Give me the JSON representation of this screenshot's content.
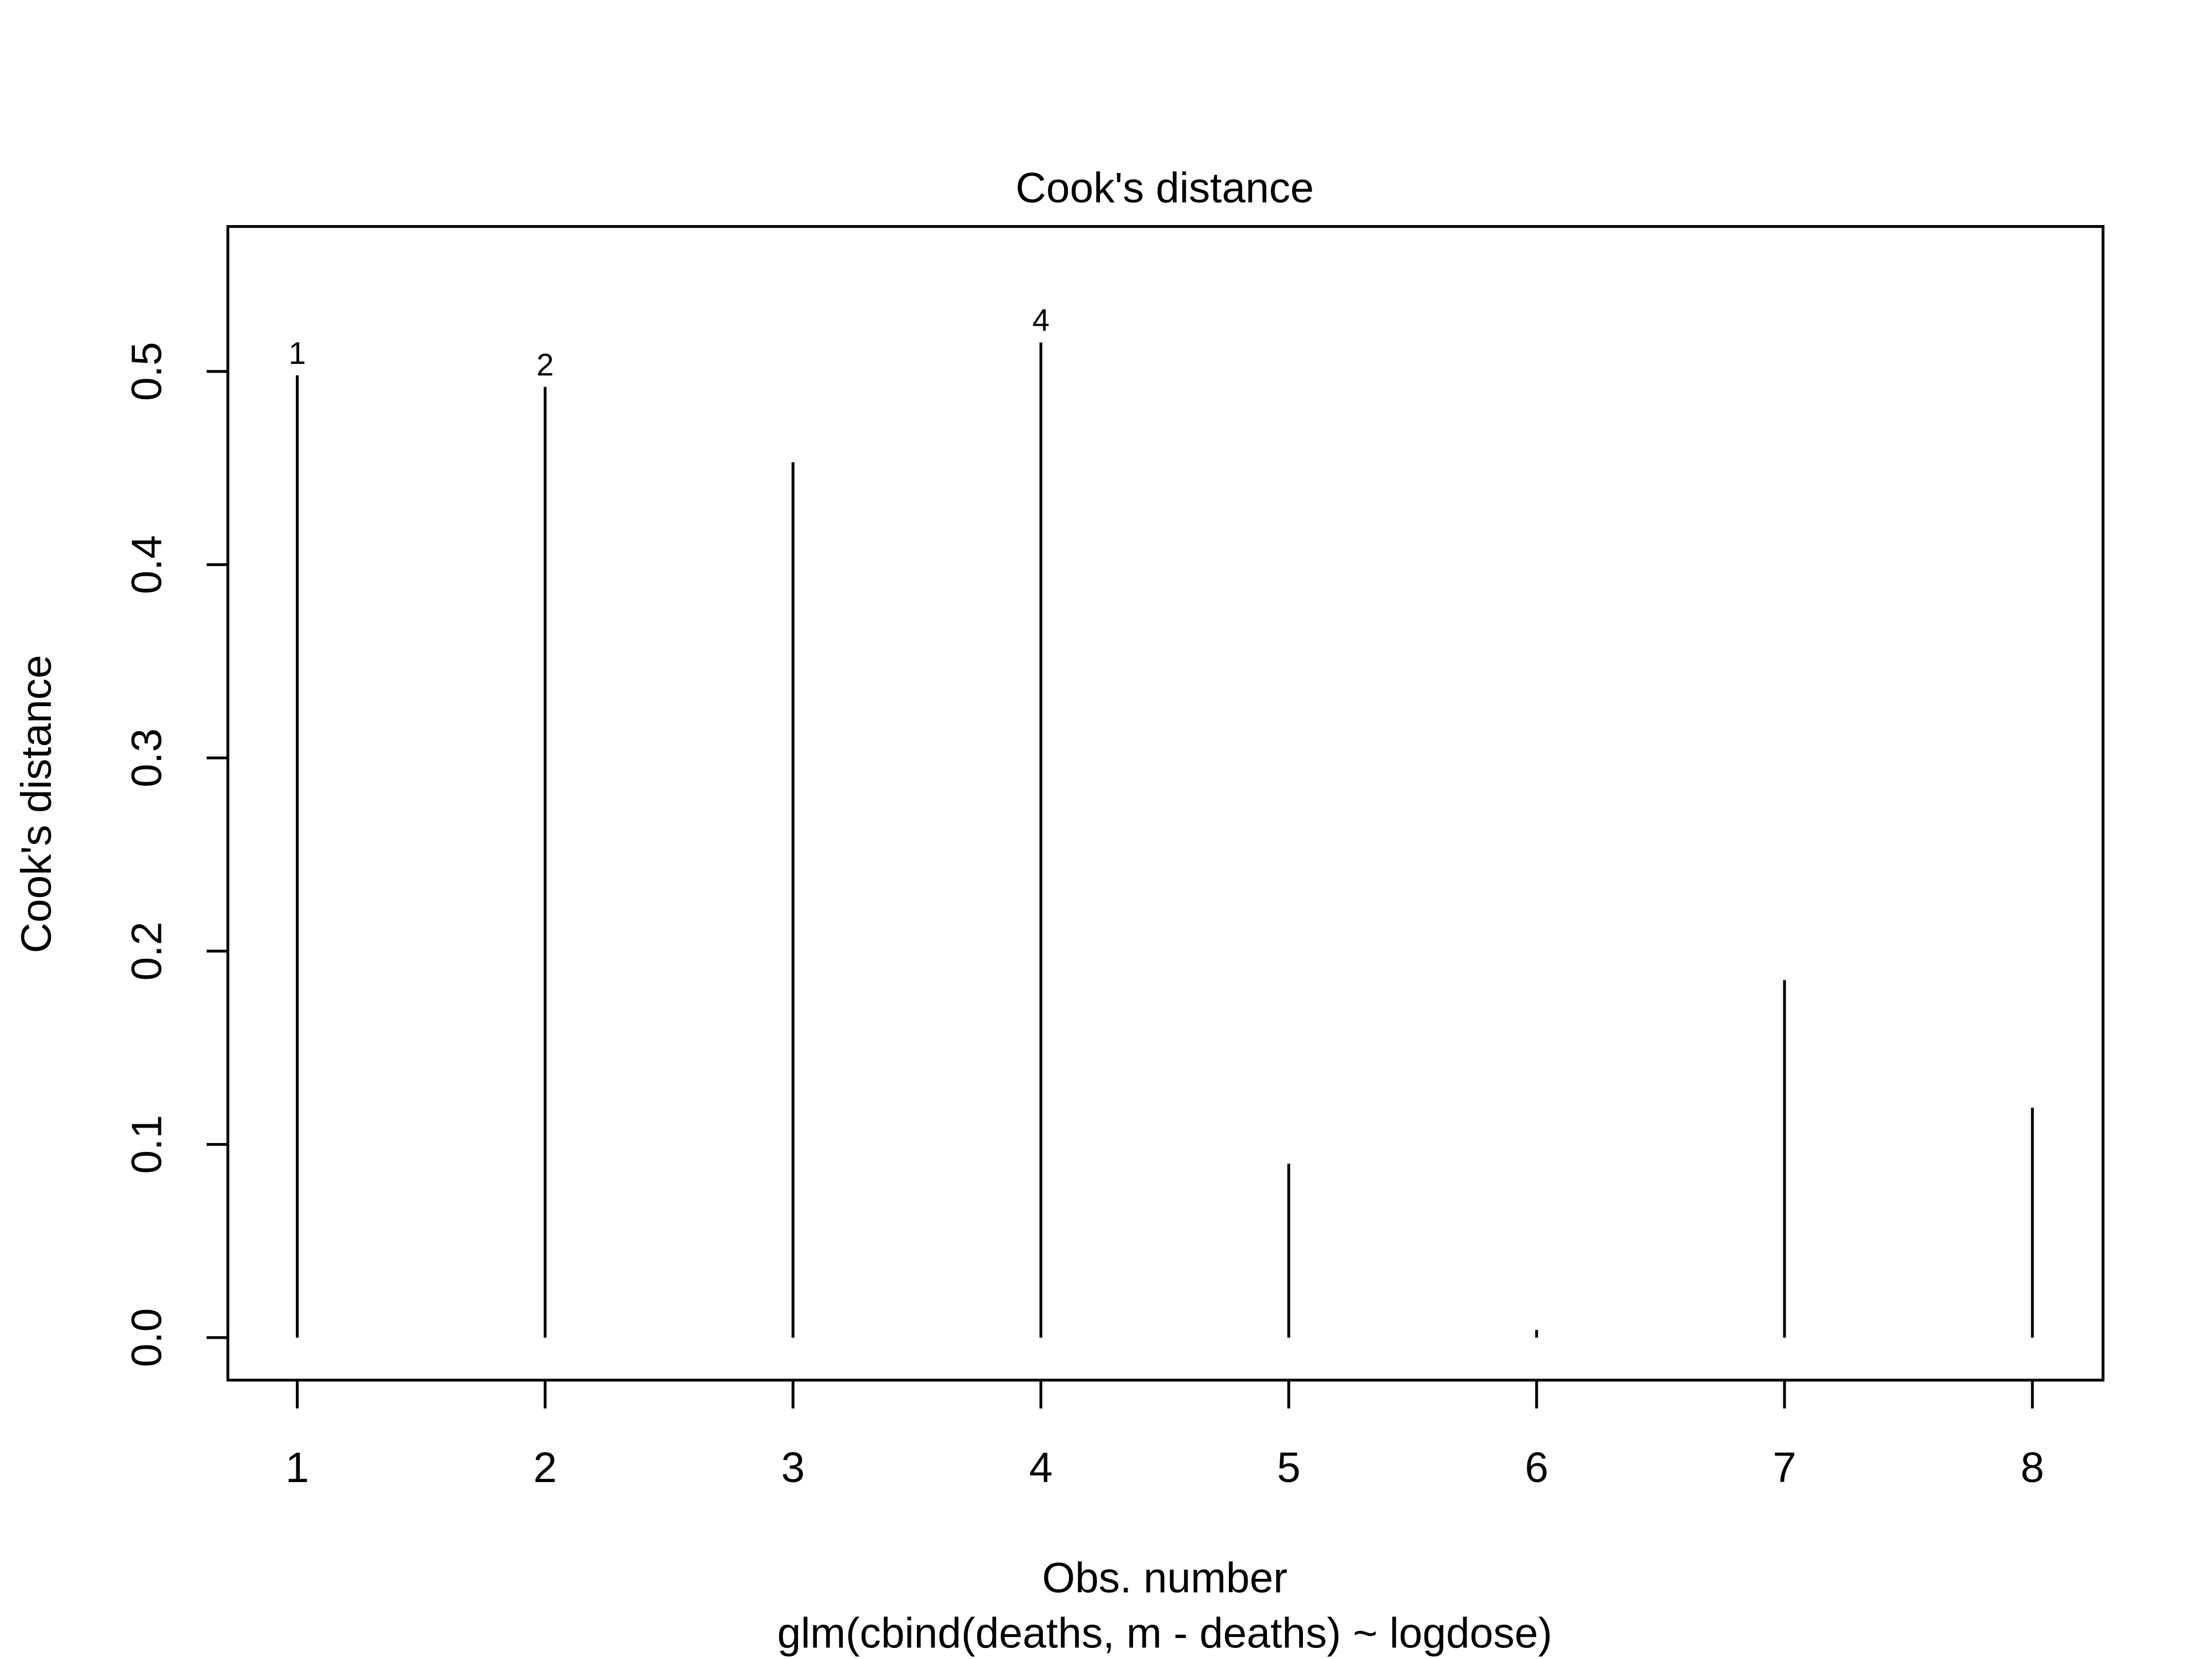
{
  "chart_data": {
    "type": "spike",
    "title": "Cook's distance",
    "x_label": "Obs. number",
    "subtitle": "glm(cbind(deaths, m - deaths) ~ logdose)",
    "y_label": "Cook's distance",
    "x": [
      1,
      2,
      3,
      4,
      5,
      6,
      7,
      8
    ],
    "values": [
      0.498,
      0.492,
      0.453,
      0.515,
      0.09,
      0.004,
      0.185,
      0.119
    ],
    "point_labels": [
      "1",
      "2",
      null,
      "4",
      null,
      null,
      null,
      null
    ],
    "color": "#000000",
    "xlim": [
      0.72,
      8.285
    ],
    "ylim": [
      -0.022,
      0.575
    ],
    "xticks": [
      1,
      2,
      3,
      4,
      5,
      6,
      7,
      8
    ],
    "yticks": [
      {
        "value": 0,
        "label": "0.0"
      },
      {
        "value": 0.1,
        "label": "0.1"
      },
      {
        "value": 0.2,
        "label": "0.2"
      },
      {
        "value": 0.3,
        "label": "0.3"
      },
      {
        "value": 0.4,
        "label": "0.4"
      },
      {
        "value": 0.5,
        "label": "0.5"
      }
    ]
  }
}
